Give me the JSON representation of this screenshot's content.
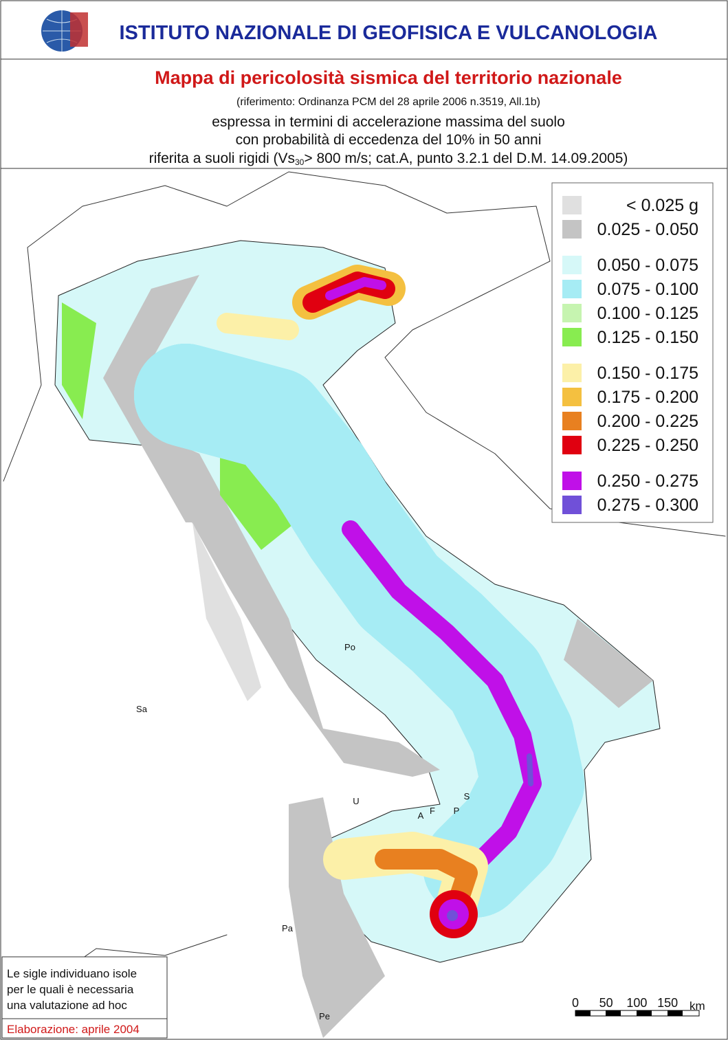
{
  "header": {
    "institute": "ISTITUTO NAZIONALE DI GEOFISICA E VULCANOLOGIA"
  },
  "title": {
    "main": "Mappa di pericolosità sismica del territorio nazionale",
    "reference": "(riferimento: Ordinanza PCM del 28 aprile 2006 n.3519, All.1b)",
    "lines": [
      "espressa in termini di accelerazione massima del suolo",
      "con probabilità di eccedenza del 10% in 50 anni"
    ],
    "last_line": {
      "before": "riferita a suoli rigidi (Vs",
      "subscript": "30",
      "after": "> 800 m/s; cat.A, punto 3.2.1 del D.M. 14.09.2005)"
    }
  },
  "legend": {
    "groups": [
      [
        {
          "label": "< 0.025 g",
          "color": "#e0e0e0"
        },
        {
          "label": "0.025 - 0.050",
          "color": "#c4c4c4"
        }
      ],
      [
        {
          "label": "0.050 - 0.075",
          "color": "#d6f8f8"
        },
        {
          "label": "0.075 - 0.100",
          "color": "#a6ecf4"
        },
        {
          "label": "0.100 - 0.125",
          "color": "#c6f4b0"
        },
        {
          "label": "0.125 - 0.150",
          "color": "#88ec50"
        }
      ],
      [
        {
          "label": "0.150 - 0.175",
          "color": "#fcf0a8"
        },
        {
          "label": "0.175 - 0.200",
          "color": "#f4c040"
        },
        {
          "label": "0.200 - 0.225",
          "color": "#e88020"
        },
        {
          "label": "0.225 - 0.250",
          "color": "#e00010"
        }
      ],
      [
        {
          "label": "0.250 - 0.275",
          "color": "#c010e8"
        },
        {
          "label": "0.275 - 0.300",
          "color": "#7050d8"
        }
      ]
    ]
  },
  "islands": [
    "Po",
    "Sa",
    "U",
    "A",
    "F",
    "P",
    "S",
    "Pa",
    "Pe"
  ],
  "note": {
    "lines": [
      "Le sigle individuano isole",
      "per le quali è necessaria",
      "una valutazione ad hoc"
    ],
    "date": "Elaborazione: aprile 2004"
  },
  "scale_bar": {
    "ticks": [
      "0",
      "50",
      "100",
      "150"
    ],
    "unit": "km"
  }
}
